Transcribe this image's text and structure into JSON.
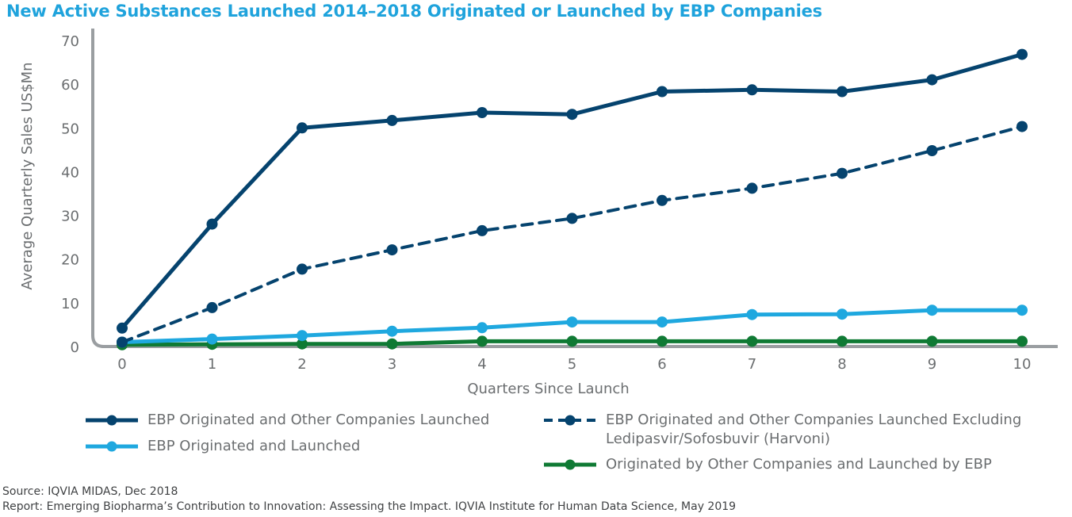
{
  "title": "New Active Substances Launched 2014–2018 Originated or Launched by EBP Companies",
  "source": "Source: IQVIA MIDAS, Dec 2018",
  "report": "Report: Emerging Biopharma’s Contribution to Innovation: Assessing the Impact. IQVIA Institute for Human Data Science, May 2019",
  "colors": {
    "dark_navy": "#05436e",
    "light_blue": "#1fa8df",
    "green": "#0f7a34",
    "axis": "#9a9ea1",
    "title": "#1fa3dc"
  },
  "chart_data": {
    "type": "line",
    "xlabel": "Quarters Since Launch",
    "ylabel": "Average Quarterly Sales US$Mn",
    "x": [
      0,
      1,
      2,
      3,
      4,
      5,
      6,
      7,
      8,
      9,
      10
    ],
    "xlim": [
      0,
      10
    ],
    "ylim": [
      0,
      70
    ],
    "yticks": [
      0,
      10,
      20,
      30,
      40,
      50,
      60,
      70
    ],
    "grid": false,
    "legend_position": "bottom",
    "series": [
      {
        "name": "EBP Originated and Other Companies Launched",
        "style": "solid",
        "color": "#05436e",
        "values": [
          4.2,
          28.0,
          50.0,
          51.7,
          53.5,
          53.1,
          58.3,
          58.7,
          58.3,
          61.0,
          66.8
        ]
      },
      {
        "name": "EBP Originated and Other Companies Launched Excluding Ledipasvir/Sofosbuvir (Harvoni)",
        "name_line1": "EBP Originated and Other Companies Launched Excluding",
        "name_line2": "Ledipasvir/Sofosbuvir (Harvoni)",
        "style": "dashed",
        "color": "#05436e",
        "values": [
          1.0,
          8.9,
          17.7,
          22.1,
          26.5,
          29.3,
          33.4,
          36.2,
          39.6,
          44.8,
          50.3
        ]
      },
      {
        "name": "EBP Originated and Launched",
        "style": "solid",
        "color": "#1fa8df",
        "values": [
          1.0,
          1.7,
          2.5,
          3.5,
          4.3,
          5.6,
          5.6,
          7.3,
          7.4,
          8.3,
          8.3
        ]
      },
      {
        "name": "Originated by Other Companies and Launched by EBP",
        "style": "solid",
        "color": "#0f7a34",
        "values": [
          0.4,
          0.5,
          0.6,
          0.6,
          1.2,
          1.2,
          1.2,
          1.2,
          1.2,
          1.2,
          1.2
        ]
      }
    ]
  }
}
